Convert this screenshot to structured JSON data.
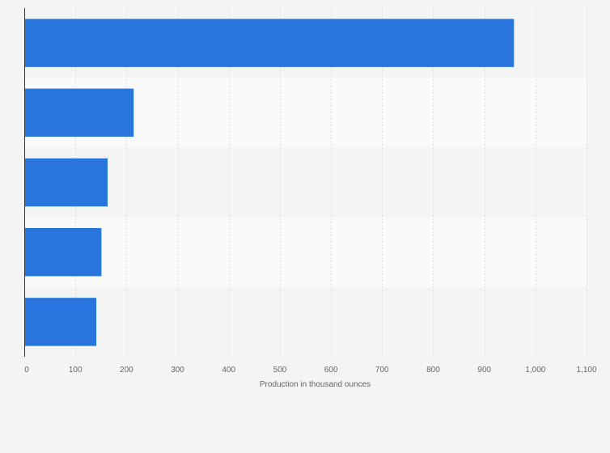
{
  "chart_data": {
    "type": "bar",
    "orientation": "horizontal",
    "categories": [
      "",
      "",
      "",
      "",
      ""
    ],
    "values": [
      958,
      214,
      163,
      151,
      141
    ],
    "title": "",
    "xlabel": "Production in thousand ounces",
    "ylabel": "",
    "xlim": [
      0,
      1100
    ],
    "xticks": [
      0,
      100,
      200,
      300,
      400,
      500,
      600,
      700,
      800,
      900,
      1000,
      1100
    ],
    "xtick_labels": [
      "0",
      "100",
      "200",
      "300",
      "400",
      "500",
      "600",
      "700",
      "800",
      "900",
      "1,000",
      "1,100"
    ],
    "grid": true,
    "legend": "none",
    "colors": {
      "bar": "#2876dd",
      "background": "#f4f4f4",
      "band_light": "#fafafa",
      "band_dark": "#f4f4f4",
      "grid": "#dcdcdc",
      "axis": "#333333",
      "text": "#666666"
    }
  }
}
